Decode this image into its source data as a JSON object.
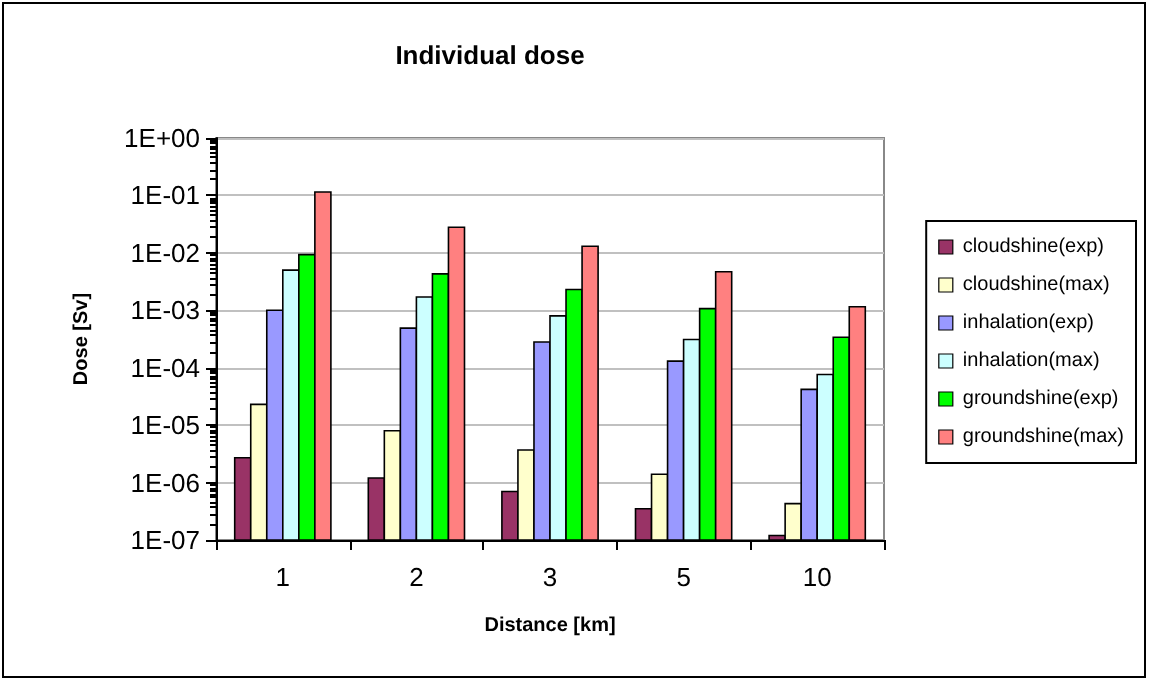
{
  "chart_data": {
    "type": "bar",
    "title": "Individual dose",
    "xlabel": "Distance [km]",
    "ylabel": "Dose [Sv]",
    "categories": [
      "1",
      "2",
      "3",
      "5",
      "10"
    ],
    "series": [
      {
        "name": "cloudshine(exp)",
        "color": "#993366",
        "values": [
          2.7e-06,
          1.2e-06,
          7e-07,
          3.5e-07,
          1.2e-07
        ]
      },
      {
        "name": "cloudshine(max)",
        "color": "#ffffcc",
        "values": [
          2.3e-05,
          8e-06,
          3.7e-06,
          1.4e-06,
          4.3e-07
        ]
      },
      {
        "name": "inhalation(exp)",
        "color": "#9999ff",
        "values": [
          0.001,
          0.00049,
          0.00028,
          0.00013,
          4.2e-05
        ]
      },
      {
        "name": "inhalation(max)",
        "color": "#ccffff",
        "values": [
          0.005,
          0.0017,
          0.0008,
          0.00031,
          7.6e-05
        ]
      },
      {
        "name": "groundshine(exp)",
        "color": "#00ff00",
        "values": [
          0.0093,
          0.0043,
          0.0023,
          0.00107,
          0.00034
        ]
      },
      {
        "name": "groundshine(max)",
        "color": "#ff8080",
        "values": [
          0.115,
          0.028,
          0.013,
          0.0047,
          0.00115
        ]
      }
    ],
    "log": "y",
    "ylim": [
      1e-07,
      1
    ],
    "yticks": [
      {
        "value": 1e-07,
        "label": "1E-07"
      },
      {
        "value": 1e-06,
        "label": "1E-06"
      },
      {
        "value": 1e-05,
        "label": "1E-05"
      },
      {
        "value": 0.0001,
        "label": "1E-04"
      },
      {
        "value": 0.001,
        "label": "1E-03"
      },
      {
        "value": 0.01,
        "label": "1E-02"
      },
      {
        "value": 0.1,
        "label": "1E-01"
      },
      {
        "value": 1,
        "label": "1E+00"
      }
    ],
    "grid": "y",
    "legend": "right"
  }
}
